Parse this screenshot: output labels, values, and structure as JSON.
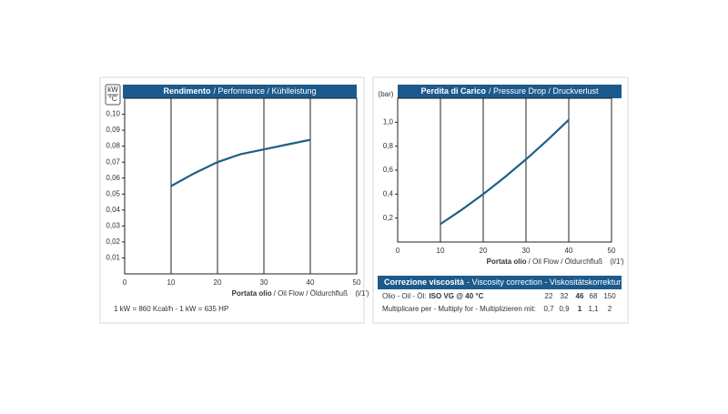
{
  "chart_data": [
    {
      "type": "line",
      "title": "Rendimento",
      "title_rest": "/ Performance / Kühlleistung",
      "ylabel": [
        "kW",
        "°C"
      ],
      "xlabel": "Portata olio",
      "xlabel_rest": "/ Oil Flow / Öldurchfluß",
      "xunit": "(l/1')",
      "x": [
        10,
        15,
        20,
        25,
        30,
        35,
        40
      ],
      "values": [
        0.055,
        0.063,
        0.07,
        0.075,
        0.078,
        0.081,
        0.084
      ],
      "color": "#1f5f8b",
      "xlim": [
        0,
        50
      ],
      "xticks": [
        0,
        10,
        20,
        30,
        40,
        50
      ],
      "ylim": [
        0,
        0.11
      ],
      "yticks": [
        {
          "value": 0.01,
          "label": "0,01"
        },
        {
          "value": 0.02,
          "label": "0,02"
        },
        {
          "value": 0.03,
          "label": "0,03"
        },
        {
          "value": 0.04,
          "label": "0,04"
        },
        {
          "value": 0.05,
          "label": "0,05"
        },
        {
          "value": 0.06,
          "label": "0,06"
        },
        {
          "value": 0.07,
          "label": "0,07"
        },
        {
          "value": 0.08,
          "label": "0,08"
        },
        {
          "value": 0.09,
          "label": "0,09"
        },
        {
          "value": 0.1,
          "label": "0,10"
        }
      ],
      "grid": "x",
      "note": "1 kW = 860 Kcal/h - 1 kW = 635 HP"
    },
    {
      "type": "line",
      "title": "Perdita di Carico",
      "title_rest": "/ Pressure Drop / Druckverlust",
      "ylabel": [
        "(bar)"
      ],
      "xlabel": "Portata olio",
      "xlabel_rest": "/ Oil Flow / Öldurchfluß",
      "xunit": "(l/1')",
      "x": [
        10,
        15,
        20,
        25,
        30,
        35,
        40
      ],
      "values": [
        0.15,
        0.27,
        0.4,
        0.54,
        0.69,
        0.85,
        1.02
      ],
      "color": "#1f5f8b",
      "xlim": [
        0,
        50
      ],
      "xticks": [
        0,
        10,
        20,
        30,
        40,
        50
      ],
      "ylim": [
        0,
        1.2
      ],
      "yticks": [
        {
          "value": 0.2,
          "label": "0,2"
        },
        {
          "value": 0.4,
          "label": "0,4"
        },
        {
          "value": 0.6,
          "label": "0,6"
        },
        {
          "value": 0.8,
          "label": "0,8"
        },
        {
          "value": 1.0,
          "label": "1,0"
        }
      ],
      "grid": "x"
    }
  ],
  "viscosity_table": {
    "title": "Correzione viscosità",
    "title_rest": "- Viscosity correction - Viskositätskorrektur",
    "rows": [
      {
        "label": "Olio - Oil - Öl:",
        "label_bold": "ISO VG @ 40 °C",
        "cells": [
          "22",
          "32",
          "46",
          "68",
          "150"
        ]
      },
      {
        "label": "Multiplicare per - Multiply for - Multiplizieren mit:",
        "cells": [
          "0,7",
          "0,9",
          "1",
          "1,1",
          "2"
        ]
      }
    ]
  }
}
